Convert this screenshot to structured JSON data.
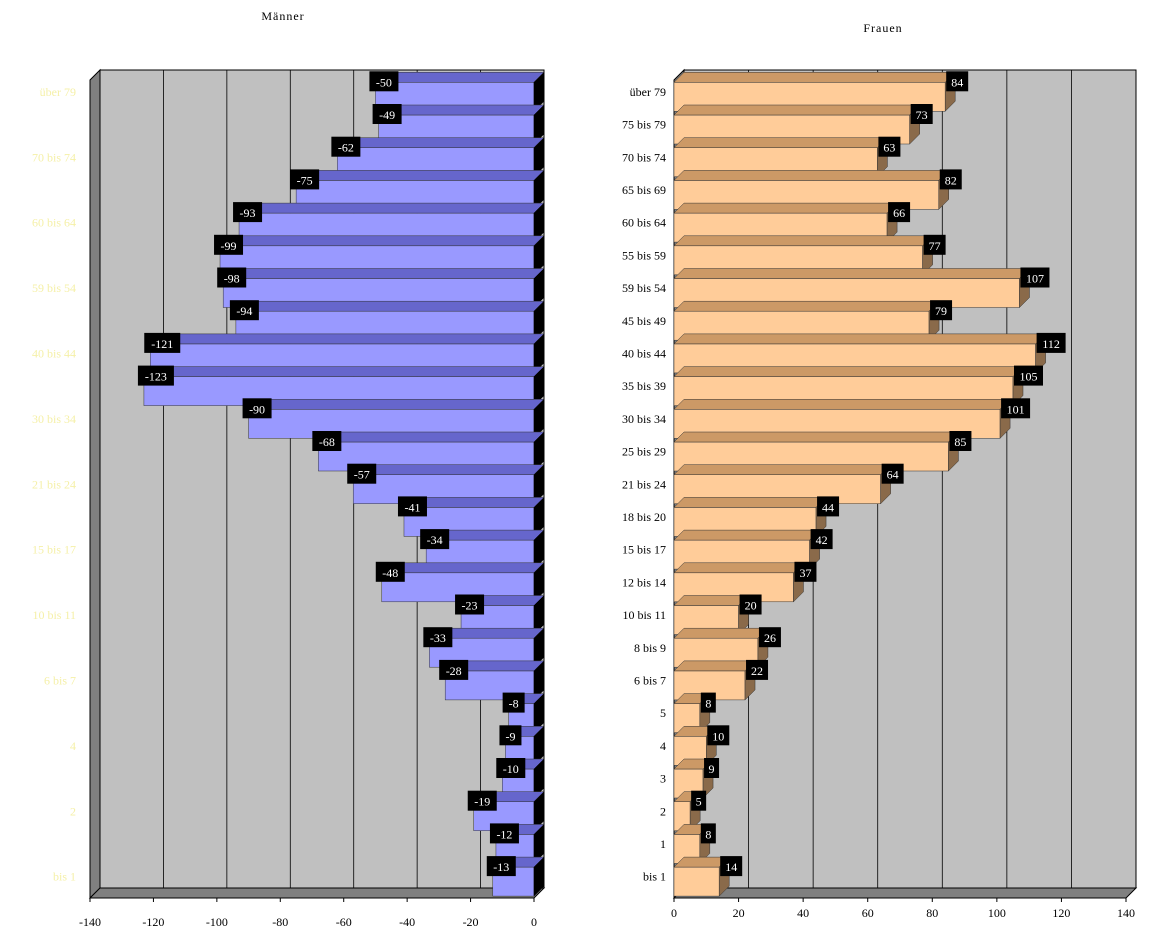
{
  "chart_data": [
    {
      "type": "bar",
      "orientation": "horizontal",
      "title": "Männer",
      "categories": [
        "bis 1",
        "1",
        "2",
        "3",
        "4",
        "5",
        "6 bis 7",
        "8 bis 9",
        "10 bis 11",
        "12 bis 14",
        "15 bis 17",
        "18 bis 20",
        "21 bis 24",
        "25 bis 29",
        "30 bis 34",
        "35 bis 39",
        "40 bis 44",
        "45 bis 49",
        "59 bis 54",
        "55 bis 59",
        "60 bis 64",
        "65 bis 69",
        "70 bis 74",
        "75 bis 79",
        "über 79"
      ],
      "visible_category_labels": [
        "bis 1",
        "2",
        "4",
        "6 bis 7",
        "10 bis 11",
        "15 bis 17",
        "21 bis 24",
        "30 bis 34",
        "40 bis 44",
        "59 bis 54",
        "60 bis 64",
        "70 bis 74",
        "über 79"
      ],
      "values": [
        -13,
        -12,
        -19,
        -10,
        -9,
        -8,
        -28,
        -33,
        -23,
        -48,
        -34,
        -41,
        -57,
        -68,
        -90,
        -123,
        -121,
        -94,
        -98,
        -99,
        -93,
        -75,
        -62,
        -49,
        -50
      ],
      "xlim": [
        -140,
        0
      ],
      "xticks": [
        "-140",
        "-120",
        "-100",
        "-80",
        "-60",
        "-40",
        "-20",
        "0"
      ],
      "grid": true,
      "colors": {
        "bar": "#9999ff",
        "bar_top": "#6666cc",
        "wall": "#c0c0c0",
        "floor": "#808080",
        "label_bg": "#000000"
      }
    },
    {
      "type": "bar",
      "orientation": "horizontal",
      "title": "Frauen",
      "categories": [
        "bis 1",
        "1",
        "2",
        "3",
        "4",
        "5",
        "6 bis 7",
        "8 bis 9",
        "10 bis 11",
        "12 bis 14",
        "15 bis 17",
        "18 bis 20",
        "21 bis 24",
        "25 bis 29",
        "30 bis 34",
        "35 bis 39",
        "40 bis 44",
        "45 bis 49",
        "59 bis 54",
        "55 bis 59",
        "60 bis 64",
        "65 bis 69",
        "70 bis 74",
        "75 bis 79",
        "über 79"
      ],
      "values": [
        14,
        8,
        5,
        9,
        10,
        8,
        22,
        26,
        20,
        37,
        42,
        44,
        64,
        85,
        101,
        105,
        112,
        79,
        107,
        77,
        66,
        82,
        63,
        73,
        84
      ],
      "xlim": [
        0,
        140
      ],
      "xticks": [
        "0",
        "20",
        "40",
        "60",
        "80",
        "100",
        "120",
        "140"
      ],
      "grid": true,
      "colors": {
        "bar": "#ffcc99",
        "bar_top": "#cc9966",
        "wall": "#c0c0c0",
        "floor": "#808080",
        "label_bg": "#000000"
      }
    }
  ]
}
